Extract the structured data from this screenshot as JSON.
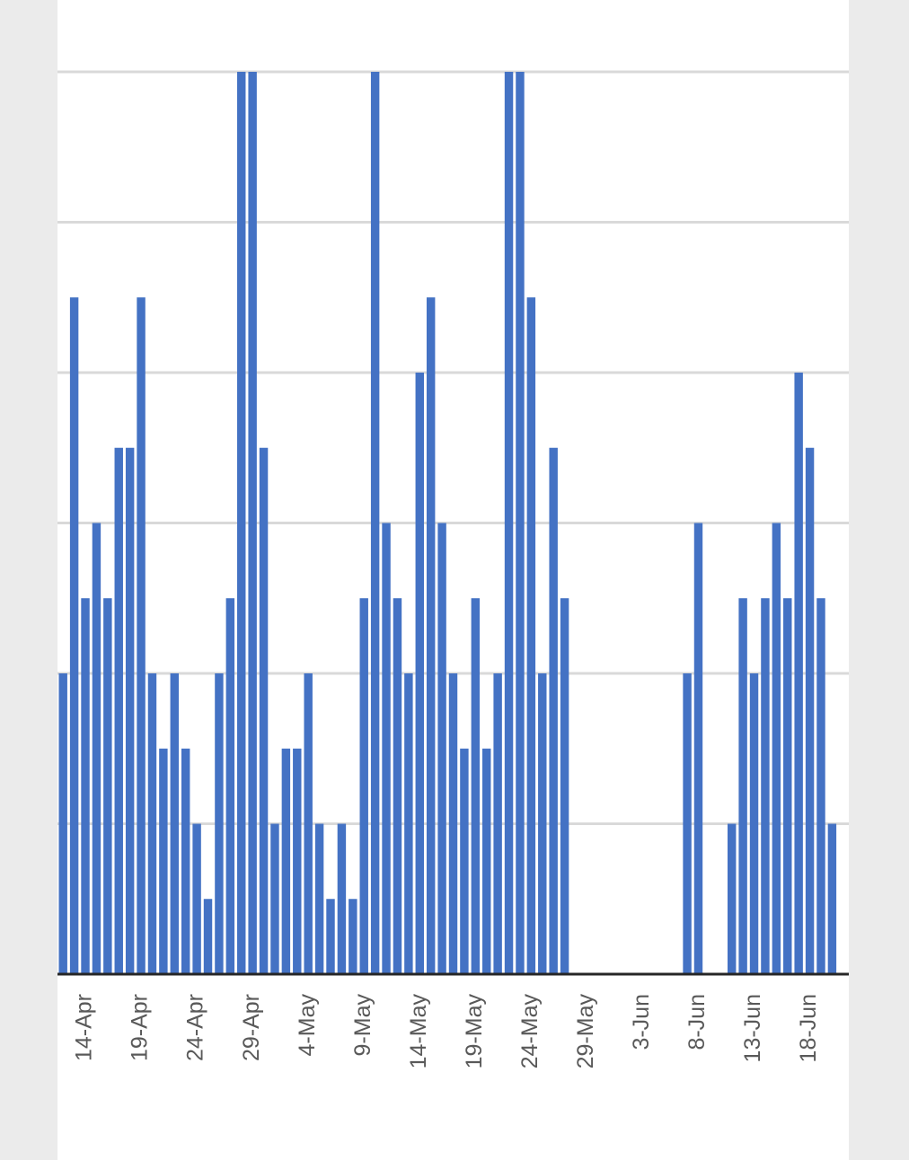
{
  "chart_data": {
    "type": "bar",
    "categories": [
      null,
      null,
      "14-Apr",
      null,
      null,
      null,
      null,
      "19-Apr",
      null,
      null,
      null,
      null,
      "24-Apr",
      null,
      null,
      null,
      null,
      "29-Apr",
      null,
      null,
      null,
      null,
      "4-May",
      null,
      null,
      null,
      null,
      "9-May",
      null,
      null,
      null,
      null,
      "14-May",
      null,
      null,
      null,
      null,
      "19-May",
      null,
      null,
      null,
      null,
      "24-May",
      null,
      null,
      null,
      null,
      "29-May",
      null,
      null,
      null,
      null,
      "3-Jun",
      null,
      null,
      null,
      null,
      "8-Jun",
      null,
      null,
      null,
      null,
      "13-Jun",
      null,
      null,
      null,
      null,
      "18-Jun",
      null,
      null,
      null
    ],
    "values": [
      2,
      4.5,
      2.5,
      3,
      2.5,
      3.5,
      3.5,
      4.5,
      2,
      1.5,
      2,
      1.5,
      1,
      0.5,
      2,
      2.5,
      6,
      6,
      3.5,
      1,
      1.5,
      1.5,
      2,
      1,
      0.5,
      1,
      0.5,
      2.5,
      6,
      3,
      2.5,
      2,
      4,
      4.5,
      3,
      2,
      1.5,
      2.5,
      1.5,
      2,
      6,
      6,
      4.5,
      2,
      3.5,
      2.5,
      0,
      0,
      0,
      0,
      0,
      0,
      0,
      0,
      0,
      0,
      2,
      3,
      0,
      0,
      1,
      2.5,
      2,
      2.5,
      3,
      2.5,
      4,
      3.5,
      2.5,
      1,
      0
    ],
    "color": "#4472c4",
    "ylim": [
      0,
      6
    ],
    "yticks": [
      0,
      1,
      2,
      3,
      4,
      5,
      6
    ],
    "grid": true
  }
}
